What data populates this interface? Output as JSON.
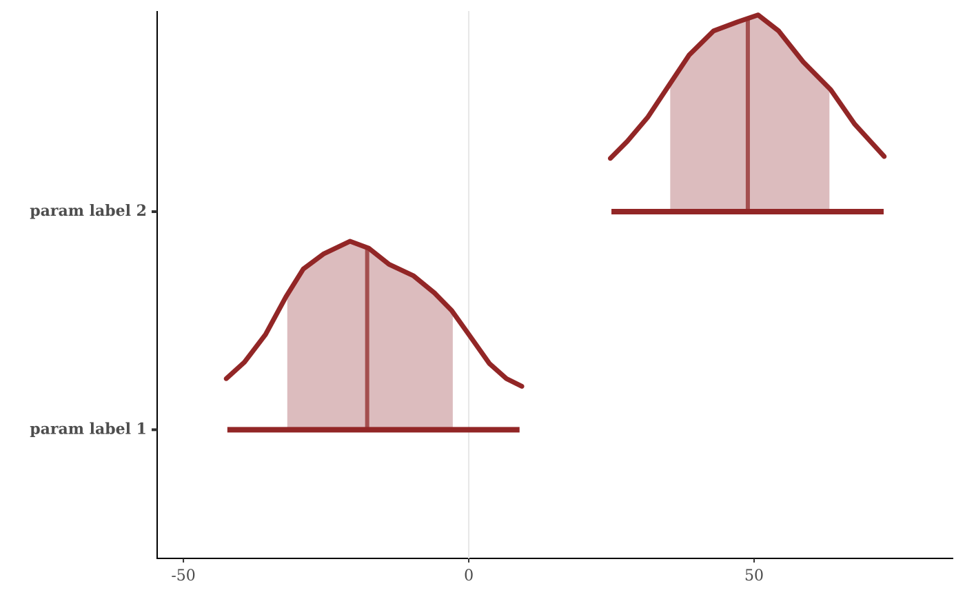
{
  "chart_data": {
    "type": "density-areas",
    "xlim": [
      -54.6,
      84.9
    ],
    "xticks": [
      -50,
      0,
      50
    ],
    "ylim": [
      0.41,
      2.92
    ],
    "yticks": [
      {
        "value": 1,
        "label": "param label 1"
      },
      {
        "value": 2,
        "label": "param label 2"
      }
    ],
    "vline": 0,
    "line_color": "#922626",
    "fill_color": "#dcbcbe",
    "median_color": "#a44f4f",
    "vline_color": "#e6e6e6",
    "densities": [
      {
        "x": [
          -42.5,
          -39.3,
          -35.6,
          -32.0,
          -29.0,
          -25.4,
          -20.8,
          -17.5,
          -14.0,
          -9.7,
          -6.0,
          -3.0,
          0,
          3.6,
          6.6,
          9.3
        ],
        "y": [
          0.234,
          0.31,
          0.437,
          0.611,
          0.737,
          0.807,
          0.864,
          0.832,
          0.759,
          0.706,
          0.627,
          0.547,
          0.437,
          0.304,
          0.234,
          0.199
        ],
        "inner": [
          -31.8,
          -2.8
        ],
        "outer": [
          -42.3,
          8.9
        ],
        "median": -17.8
      },
      {
        "x": [
          24.8,
          27.8,
          31.4,
          35.0,
          38.6,
          42.9,
          47.1,
          50.7,
          54.3,
          58.6,
          63.4,
          67.6,
          72.8
        ],
        "y": [
          0.244,
          0.323,
          0.434,
          0.576,
          0.718,
          0.829,
          0.87,
          0.902,
          0.829,
          0.687,
          0.56,
          0.402,
          0.253
        ],
        "inner": [
          35.3,
          63.2
        ],
        "outer": [
          25.0,
          72.7
        ],
        "median": 48.9
      }
    ]
  }
}
